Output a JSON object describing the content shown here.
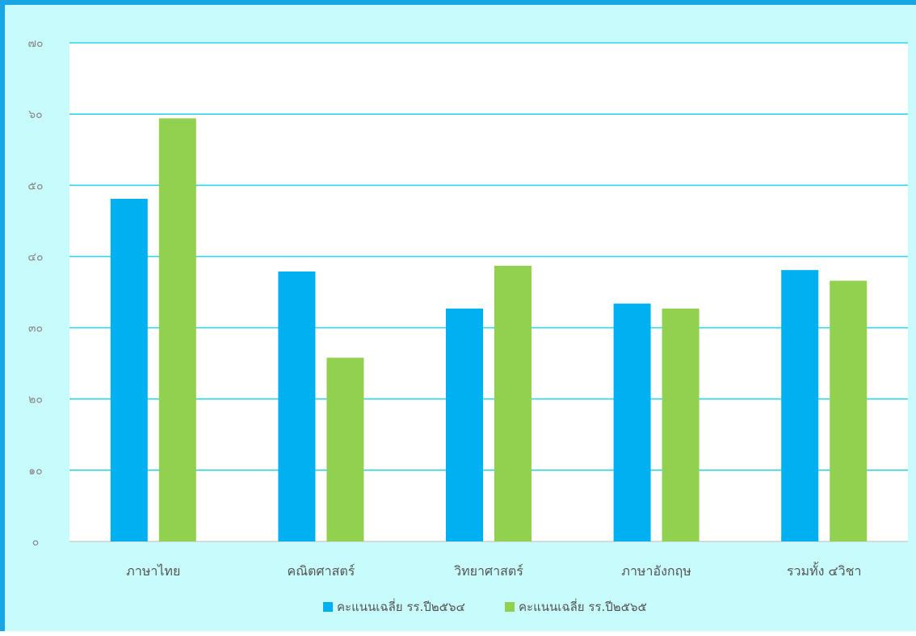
{
  "chart_data": {
    "type": "bar",
    "categories": [
      "ภาษาไทย",
      "คณิตศาสตร์",
      "วิทยาศาสตร์",
      "ภาษาอังกฤษ",
      "รวมทั้ง ๔วิชา"
    ],
    "series": [
      {
        "name": "คะแนนเฉลี่ย รร.ปี๒๕๖๔",
        "values": [
          48.1,
          37.9,
          32.7,
          33.4,
          38.1
        ],
        "color": "#00b0f0"
      },
      {
        "name": "คะแนนเฉลี่ย รร.ปี๒๕๖๕",
        "values": [
          59.4,
          25.8,
          38.7,
          32.7,
          36.6
        ],
        "color": "#92d050"
      }
    ],
    "yticks": [
      "๐",
      "๑๐",
      "๒๐",
      "๓๐",
      "๔๐",
      "๕๐",
      "๖๐",
      "๗๐"
    ],
    "ylim": [
      0,
      70
    ],
    "grid": true,
    "gridline_color": "#33d6e8",
    "legend_position": "bottom",
    "plot_background": "#ffffff",
    "chart_background": "#c8fbfb",
    "border_color": "#1aa6e6"
  }
}
